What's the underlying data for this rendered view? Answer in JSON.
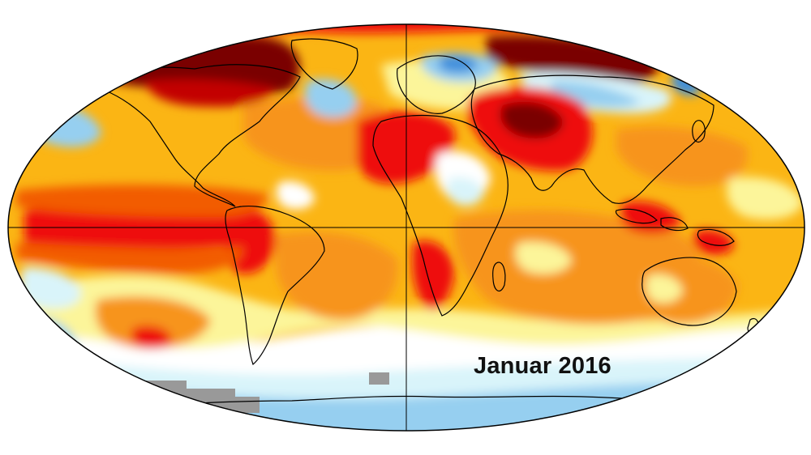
{
  "map": {
    "label": "Januar 2016",
    "projection": "robinson",
    "colors": {
      "anomaly_darkest": "#7a0000",
      "anomaly_dark": "#c30000",
      "anomaly_red": "#ee1010",
      "anomaly_orange_red": "#f25c00",
      "anomaly_orange": "#f7941d",
      "anomaly_yellow_orange": "#fbb514",
      "anomaly_yellow": "#fce51a",
      "anomaly_pale_yellow": "#fcf59a",
      "anomaly_neutral": "#ffffff",
      "anomaly_pale_cyan": "#d9f4fa",
      "anomaly_light_blue": "#96cff0",
      "anomaly_blue": "#3f8fdc",
      "no_data": "#999999",
      "outline": "#000000"
    }
  }
}
